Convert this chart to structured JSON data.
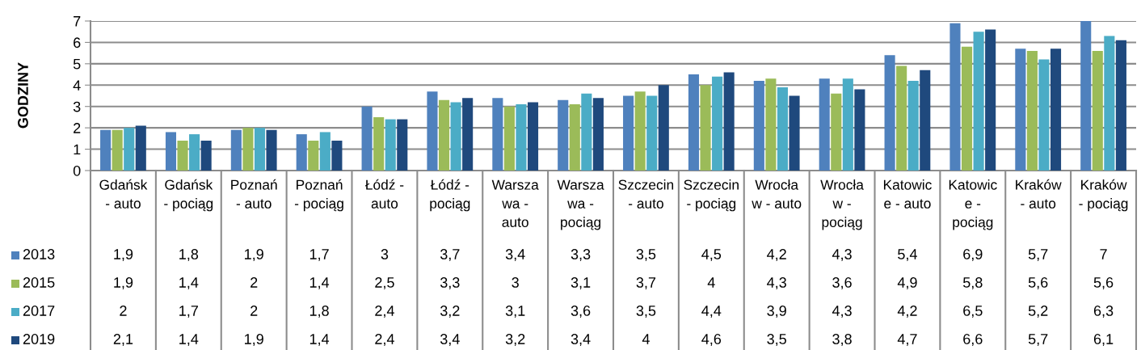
{
  "chart_data": {
    "type": "bar",
    "ylabel": "GODZINY",
    "categories": [
      "Gdańsk\n- auto",
      "Gdańsk\n- pociąg",
      "Poznań\n- auto",
      "Poznań\n- pociąg",
      "Łódź -\nauto",
      "Łódź -\npociąg",
      "Warsza\nwa -\nauto",
      "Warsza\nwa -\npociąg",
      "Szczecin\n- auto",
      "Szczecin\n- pociąg",
      "Wrocła\nw - auto",
      "Wrocła\nw -\npociąg",
      "Katowic\ne - auto",
      "Katowic\ne -\npociąg",
      "Kraków\n- auto",
      "Kraków\n- pociąg"
    ],
    "series": [
      {
        "name": "2013",
        "color": "#4f81bd",
        "values": [
          1.9,
          1.8,
          1.9,
          1.7,
          3,
          3.7,
          3.4,
          3.3,
          3.5,
          4.5,
          4.2,
          4.3,
          5.4,
          6.9,
          5.7,
          7
        ],
        "value_labels": [
          "1,9",
          "1,8",
          "1,9",
          "1,7",
          "3",
          "3,7",
          "3,4",
          "3,3",
          "3,5",
          "4,5",
          "4,2",
          "4,3",
          "5,4",
          "6,9",
          "5,7",
          "7"
        ]
      },
      {
        "name": "2015",
        "color": "#9bbb59",
        "values": [
          1.9,
          1.4,
          2,
          1.4,
          2.5,
          3.3,
          3,
          3.1,
          3.7,
          4,
          4.3,
          3.6,
          4.9,
          5.8,
          5.6,
          5.6
        ],
        "value_labels": [
          "1,9",
          "1,4",
          "2",
          "1,4",
          "2,5",
          "3,3",
          "3",
          "3,1",
          "3,7",
          "4",
          "4,3",
          "3,6",
          "4,9",
          "5,8",
          "5,6",
          "5,6"
        ]
      },
      {
        "name": "2017",
        "color": "#4bacc6",
        "values": [
          2,
          1.7,
          2,
          1.8,
          2.4,
          3.2,
          3.1,
          3.6,
          3.5,
          4.4,
          3.9,
          4.3,
          4.2,
          6.5,
          5.2,
          6.3
        ],
        "value_labels": [
          "2",
          "1,7",
          "2",
          "1,8",
          "2,4",
          "3,2",
          "3,1",
          "3,6",
          "3,5",
          "4,4",
          "3,9",
          "4,3",
          "4,2",
          "6,5",
          "5,2",
          "6,3"
        ]
      },
      {
        "name": "2019",
        "color": "#1f497d",
        "values": [
          2.1,
          1.4,
          1.9,
          1.4,
          2.4,
          3.4,
          3.2,
          3.4,
          4,
          4.6,
          3.5,
          3.8,
          4.7,
          6.6,
          5.7,
          6.1
        ],
        "value_labels": [
          "2,1",
          "1,4",
          "1,9",
          "1,4",
          "2,4",
          "3,4",
          "3,2",
          "3,4",
          "4",
          "4,6",
          "3,5",
          "3,8",
          "4,7",
          "6,6",
          "5,7",
          "6,1"
        ]
      }
    ],
    "ylim": [
      0,
      7
    ],
    "yticks": [
      0,
      1,
      2,
      3,
      4,
      5,
      6,
      7
    ],
    "grid": "y",
    "legend": "bottom left"
  }
}
